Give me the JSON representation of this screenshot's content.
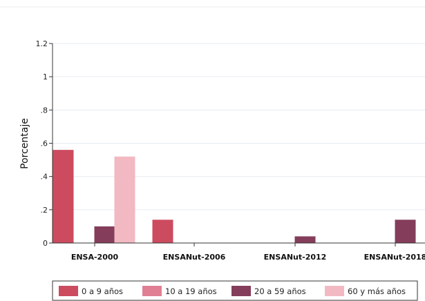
{
  "chart_data": {
    "type": "bar",
    "title": "",
    "xlabel": "",
    "ylabel": "Porcentaje",
    "ylim": [
      0,
      1.2
    ],
    "yticks": [
      {
        "value": 0,
        "label": "0"
      },
      {
        "value": 0.2,
        "label": ".2"
      },
      {
        "value": 0.4,
        "label": ".4"
      },
      {
        "value": 0.6,
        "label": ".6"
      },
      {
        "value": 0.8,
        "label": ".8"
      },
      {
        "value": 1.0,
        "label": "1"
      },
      {
        "value": 1.2,
        "label": "1.2"
      }
    ],
    "categories": [
      "ENSA-2000",
      "ENSANut-2006",
      "ENSANut-2012",
      "ENSANut-2018"
    ],
    "series": [
      {
        "name": "0 a 9 años",
        "color": "#cc4b5f",
        "values": [
          0.56,
          0.14,
          null,
          null
        ]
      },
      {
        "name": "10 a 19 años",
        "color": "#e07f93",
        "values": [
          null,
          null,
          null,
          null
        ]
      },
      {
        "name": "20 a 59 años",
        "color": "#843d5a",
        "values": [
          0.1,
          null,
          0.04,
          0.14
        ]
      },
      {
        "name": "60 y más años",
        "color": "#f2b9c3",
        "values": [
          0.52,
          null,
          null,
          null
        ]
      }
    ],
    "grid": true,
    "legend_position": "bottom"
  }
}
